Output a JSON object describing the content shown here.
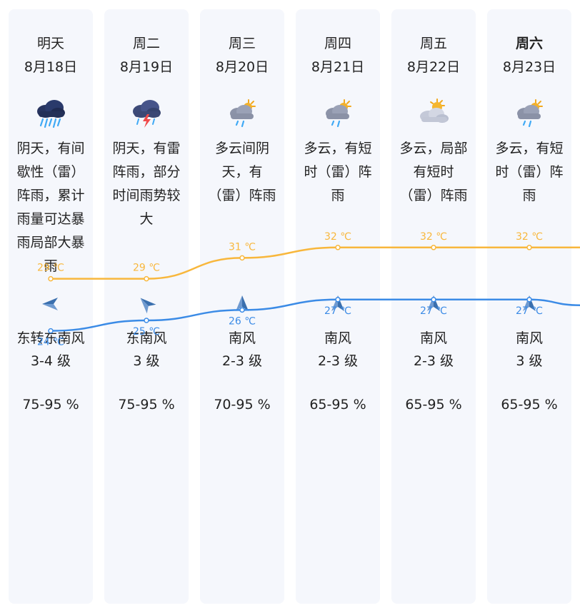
{
  "days": [
    {
      "day": "明天",
      "date": "8月18日",
      "bold": false,
      "icon": "heavy-rain-icon",
      "desc": "阴天，有间歇性（雷）阵雨，累计雨量可达暴雨局部大暴雨",
      "wind_dir": "东转东南风",
      "wind_level": "3-4 级",
      "humidity": "75-95 %",
      "high": "29 ℃",
      "low": "24 ℃",
      "arrow_icon": "wind-arrow-west-icon"
    },
    {
      "day": "周二",
      "date": "8月19日",
      "bold": false,
      "icon": "thunderstorm-icon",
      "desc": "阴天，有雷阵雨，部分时间雨势较大",
      "wind_dir": "东南风",
      "wind_level": "3 级",
      "humidity": "75-95 %",
      "high": "29 ℃",
      "low": "25 ℃",
      "arrow_icon": "wind-arrow-northwest-icon"
    },
    {
      "day": "周三",
      "date": "8月20日",
      "bold": false,
      "icon": "partly-cloudy-rain-icon",
      "desc": "多云间阴天，有（雷）阵雨",
      "wind_dir": "南风",
      "wind_level": "2-3 级",
      "humidity": "70-95 %",
      "high": "31 ℃",
      "low": "26 ℃",
      "arrow_icon": "wind-arrow-north-icon"
    },
    {
      "day": "周四",
      "date": "8月21日",
      "bold": false,
      "icon": "partly-cloudy-rain-icon",
      "desc": "多云，有短时（雷）阵雨",
      "wind_dir": "南风",
      "wind_level": "2-3 级",
      "humidity": "65-95 %",
      "high": "32 ℃",
      "low": "27 ℃",
      "arrow_icon": "wind-arrow-north-icon"
    },
    {
      "day": "周五",
      "date": "8月22日",
      "bold": false,
      "icon": "partly-cloudy-icon",
      "desc": "多云，局部有短时（雷）阵雨",
      "wind_dir": "南风",
      "wind_level": "2-3 级",
      "humidity": "65-95 %",
      "high": "32 ℃",
      "low": "27 ℃",
      "arrow_icon": "wind-arrow-north-icon"
    },
    {
      "day": "周六",
      "date": "8月23日",
      "bold": true,
      "icon": "partly-cloudy-rain-icon",
      "desc": "多云，有短时（雷）阵雨",
      "wind_dir": "南风",
      "wind_level": "3 级",
      "humidity": "65-95 %",
      "high": "32 ℃",
      "low": "27 ℃",
      "arrow_icon": "wind-arrow-north-icon"
    }
  ],
  "colors": {
    "high_line": "#f8b73c",
    "low_line": "#3b8be6",
    "card_bg": "#f5f7fc"
  },
  "chart_data": {
    "type": "line",
    "categories": [
      "明天",
      "周二",
      "周三",
      "周四",
      "周五",
      "周六"
    ],
    "series": [
      {
        "values": [
          29,
          29,
          31,
          32,
          32,
          32
        ]
      },
      {
        "values": [
          24,
          25,
          26,
          27,
          27,
          27
        ]
      }
    ],
    "unit": "℃"
  }
}
